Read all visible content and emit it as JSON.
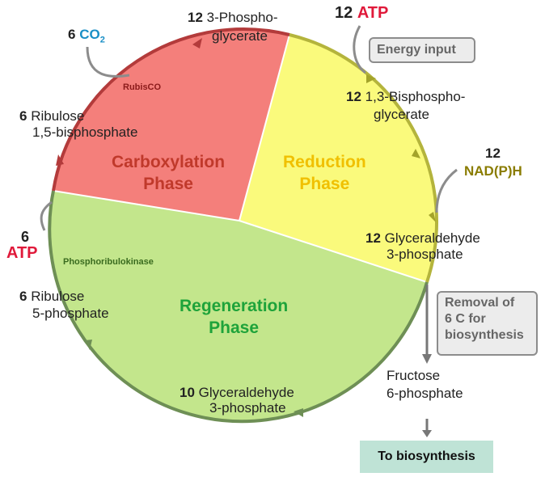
{
  "colors": {
    "carboxylation": "#f47f7b",
    "reduction": "#fafa7c",
    "regeneration": "#c3e68c",
    "ring_red": "#b33b3b",
    "ring_yellow": "#b4b43c",
    "ring_green": "#6e8f55",
    "atp": "#e0193a",
    "co2": "#1a8fc6",
    "nadph": "#8a7c00",
    "biosynthesis_box": "#bfe3d6"
  },
  "phases": {
    "carboxylation": [
      "Carboxylation",
      "Phase"
    ],
    "reduction": [
      "Reduction",
      "Phase"
    ],
    "regeneration": [
      "Regeneration",
      "Phase"
    ]
  },
  "enzymes": {
    "rubisco": "RubisCO",
    "prk": "Phosphoribulokinase"
  },
  "labels": {
    "pga": {
      "num": "12",
      "line1": "3-Phospho-",
      "line2": "glycerate"
    },
    "atp_top": {
      "num": "12",
      "text": "ATP"
    },
    "energy_input": "Energy input",
    "bpg": {
      "num": "12",
      "line1": "1,3-Bisphospho-",
      "line2": "glycerate"
    },
    "nadph": {
      "num": "12",
      "text": "NAD(P)H"
    },
    "g3p12": {
      "num": "12",
      "line1": "Glyceraldehyde",
      "line2": "3-phosphate"
    },
    "removal": [
      "Removal of",
      "6 C for",
      "biosynthesis"
    ],
    "fructose": [
      "Fructose",
      "6-phosphate"
    ],
    "to_biosynthesis": "To biosynthesis",
    "g3p10": {
      "num": "10",
      "line1": "Glyceraldehyde",
      "line2": "3-phosphate"
    },
    "ru5p": {
      "num": "6",
      "line1": "Ribulose",
      "line2": "5-phosphate"
    },
    "atp_left": {
      "num": "6",
      "text": "ATP"
    },
    "rubp": {
      "num": "6",
      "line1": "Ribulose",
      "line2": "1,5-bisphosphate"
    },
    "co2": {
      "num": "6",
      "text": "CO",
      "sub": "2"
    }
  }
}
